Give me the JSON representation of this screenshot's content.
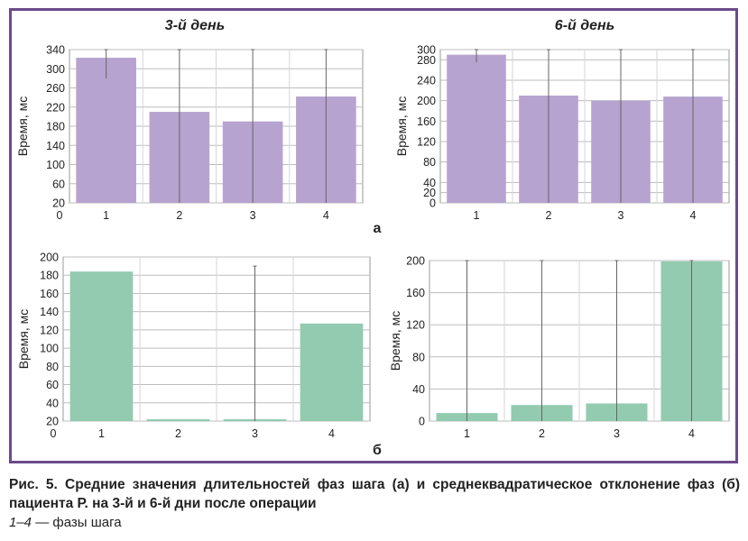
{
  "panel_letters": {
    "a": "а",
    "b": "б"
  },
  "caption": {
    "main": "Рис. 5. Средние значения длительностей фаз шага (а) и среднеквадратическое отклонение фаз (б) пациента Р. на 3-й и 6-й дни после операции",
    "legend_range": "1–4",
    "legend_text": " — фазы шага"
  },
  "colors": {
    "frame": "#6b4a8a",
    "purple_bar": "#b7a3cf",
    "green_bar": "#92cbb0",
    "grid": "#bdbdbd",
    "errorbar": "#666666"
  },
  "chart_data": [
    {
      "type": "bar",
      "title": "3-й день",
      "ylabel": "Время, мс",
      "categories": [
        "1",
        "2",
        "3",
        "4"
      ],
      "values": [
        323,
        210,
        190,
        242
      ],
      "error_upper": [
        340,
        340,
        340,
        340
      ],
      "error_lower": [
        280,
        20,
        20,
        20
      ],
      "ylim": [
        20,
        340
      ],
      "yticks": [
        20,
        60,
        100,
        140,
        180,
        220,
        260,
        300,
        340
      ],
      "x_origin_label": "0",
      "grid": true,
      "bar_color": "#b7a3cf"
    },
    {
      "type": "bar",
      "title": "6-й день",
      "ylabel": "Время, мс",
      "categories": [
        "1",
        "2",
        "3",
        "4"
      ],
      "values": [
        290,
        210,
        200,
        208
      ],
      "error_upper": [
        300,
        300,
        300,
        300
      ],
      "error_lower": [
        275,
        0,
        0,
        0
      ],
      "ylim": [
        0,
        300
      ],
      "yticks": [
        0,
        20,
        40,
        80,
        120,
        160,
        200,
        240,
        280,
        300
      ],
      "x_origin_label": "",
      "grid": true,
      "bar_color": "#b7a3cf"
    },
    {
      "type": "bar",
      "title": "",
      "ylabel": "Время, мс",
      "categories": [
        "1",
        "2",
        "3",
        "4"
      ],
      "values": [
        184,
        22,
        22,
        127
      ],
      "error_upper": [
        null,
        null,
        190,
        null
      ],
      "error_lower": [
        null,
        null,
        20,
        null
      ],
      "ylim": [
        20,
        200
      ],
      "yticks": [
        20,
        40,
        60,
        80,
        100,
        120,
        140,
        160,
        180,
        200
      ],
      "x_origin_label": "0",
      "grid": true,
      "bar_color": "#92cbb0"
    },
    {
      "type": "bar",
      "title": "",
      "ylabel": "Время, мс",
      "categories": [
        "1",
        "2",
        "3",
        "4"
      ],
      "values": [
        10,
        20,
        22,
        199
      ],
      "error_upper": [
        200,
        200,
        200,
        200
      ],
      "error_lower": [
        0,
        0,
        0,
        0
      ],
      "ylim": [
        0,
        200
      ],
      "yticks": [
        0,
        40,
        80,
        120,
        160,
        200
      ],
      "x_origin_label": "",
      "grid": true,
      "bar_color": "#92cbb0"
    }
  ]
}
